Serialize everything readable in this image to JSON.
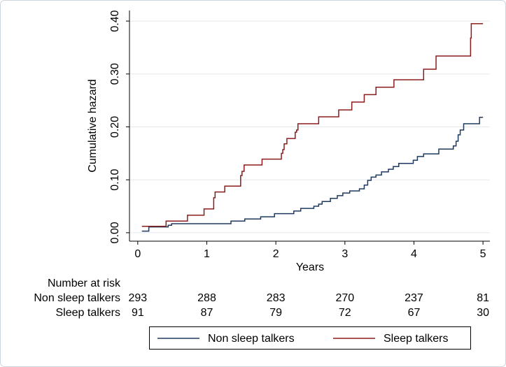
{
  "chart_data": {
    "type": "line",
    "drawstyle": "steps-post",
    "ylabel": "Cumulative hazard",
    "xlabel": "Years",
    "xlim": [
      -0.12,
      5.1
    ],
    "xticks": [
      0,
      1,
      2,
      3,
      4,
      5
    ],
    "ylim": [
      -0.016,
      0.42
    ],
    "yticks": [
      {
        "value": 0,
        "label": "0.00"
      },
      {
        "value": 0.1,
        "label": "0.10"
      },
      {
        "value": 0.2,
        "label": "0.20"
      },
      {
        "value": 0.3,
        "label": "0.30"
      },
      {
        "value": 0.4,
        "label": "0.40"
      }
    ],
    "grid": true,
    "series": [
      {
        "name": "Non sleep talkers",
        "color": "#1f3a5f",
        "x": [
          0.06,
          0.16,
          0.44,
          0.49,
          1.35,
          1.55,
          1.78,
          1.98,
          2.26,
          2.36,
          2.55,
          2.62,
          2.67,
          2.79,
          2.89,
          2.97,
          3.07,
          3.21,
          3.28,
          3.33,
          3.38,
          3.45,
          3.53,
          3.63,
          3.7,
          3.78,
          3.99,
          4.05,
          4.14,
          4.36,
          4.57,
          4.61,
          4.64,
          4.67,
          4.72,
          4.95,
          5.0
        ],
        "values": [
          0.003,
          0.011,
          0.014,
          0.017,
          0.022,
          0.026,
          0.03,
          0.036,
          0.041,
          0.046,
          0.05,
          0.054,
          0.059,
          0.065,
          0.07,
          0.075,
          0.079,
          0.083,
          0.09,
          0.099,
          0.105,
          0.109,
          0.115,
          0.12,
          0.125,
          0.131,
          0.137,
          0.144,
          0.149,
          0.158,
          0.164,
          0.173,
          0.185,
          0.194,
          0.206,
          0.218,
          0.218
        ]
      },
      {
        "name": "Sleep talkers",
        "color": "#8b1c1c",
        "x": [
          0.06,
          0.41,
          0.72,
          0.96,
          1.1,
          1.12,
          1.26,
          1.49,
          1.51,
          1.54,
          1.8,
          2.08,
          2.1,
          2.12,
          2.16,
          2.28,
          2.3,
          2.32,
          2.62,
          2.91,
          3.1,
          3.28,
          3.45,
          3.71,
          4.14,
          4.32,
          4.82,
          4.83,
          5.0
        ],
        "values": [
          0.012,
          0.022,
          0.033,
          0.045,
          0.066,
          0.077,
          0.088,
          0.108,
          0.116,
          0.128,
          0.139,
          0.15,
          0.157,
          0.168,
          0.178,
          0.19,
          0.194,
          0.206,
          0.219,
          0.232,
          0.247,
          0.261,
          0.275,
          0.289,
          0.309,
          0.334,
          0.368,
          0.395,
          0.395
        ]
      }
    ],
    "risk_table": {
      "title": "Number at risk",
      "rows": [
        {
          "name": "Non sleep talkers",
          "values": [
            293,
            288,
            283,
            270,
            237,
            81
          ]
        },
        {
          "name": "Sleep talkers",
          "values": [
            91,
            87,
            79,
            72,
            67,
            30
          ]
        }
      ]
    }
  }
}
